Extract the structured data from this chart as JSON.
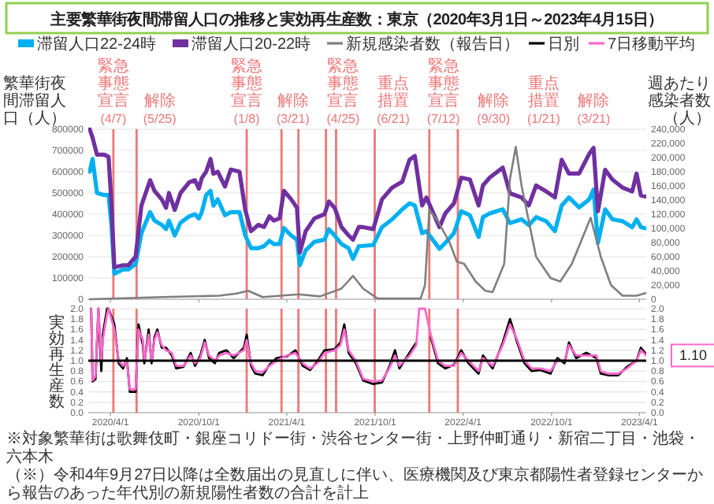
{
  "chart_data": [
    {
      "type": "line",
      "title": "主要繁華街夜間滞留人口の推移と実効再生産数：東京（2020年3月1日～2023年4月15日）",
      "ylabel": "繁華街夜間滞留人口（人）",
      "y2label": "週あたり感染者数（人）",
      "xlim": [
        "2020-02-15",
        "2023-04-15"
      ],
      "xticks": [
        "2020-04-01",
        "2020-10-01",
        "2021-04-01",
        "2021-10-01",
        "2022-04-01",
        "2022-10-01",
        "2023-04-01"
      ],
      "ylim": [
        0,
        800000
      ],
      "yticks": [
        0,
        100000,
        200000,
        300000,
        400000,
        500000,
        600000,
        700000,
        800000
      ],
      "y2lim": [
        0,
        240000
      ],
      "y2ticks": [
        0,
        {
          "value": 20000,
          "label": "20,000"
        },
        {
          "value": 40000,
          "label": "40,000"
        },
        {
          "value": 60000,
          "label": "60,000"
        },
        {
          "value": 80000,
          "label": "80,000"
        },
        {
          "value": 100000,
          "label": "100,000"
        },
        {
          "value": 120000,
          "label": "120,000"
        },
        {
          "value": 140000,
          "label": "140,000"
        },
        {
          "value": 160000,
          "label": "160,000"
        },
        {
          "value": 180000,
          "label": "180,000"
        },
        {
          "value": 200000,
          "label": "200,000"
        },
        {
          "value": 220000,
          "label": "220,000"
        },
        {
          "value": 240000,
          "label": "240,000"
        }
      ],
      "grid": "y",
      "legend": "top",
      "tick_labels": "y",
      "x": [
        "2020-02-18",
        "2020-02-24",
        "2020-03-04",
        "2020-03-19",
        "2020-03-28",
        "2020-04-03",
        "2020-04-09",
        "2020-04-27",
        "2020-05-08",
        "2020-05-23",
        "2020-06-04",
        "2020-06-22",
        "2020-07-01",
        "2020-07-16",
        "2020-07-25",
        "2020-07-31",
        "2020-08-12",
        "2020-08-24",
        "2020-09-11",
        "2020-09-23",
        "2020-10-01",
        "2020-10-07",
        "2020-10-16",
        "2020-10-25",
        "2020-10-31",
        "2020-11-09",
        "2020-11-24",
        "2020-12-06",
        "2020-12-24",
        "2021-01-05",
        "2021-01-17",
        "2021-02-01",
        "2021-02-13",
        "2021-02-24",
        "2021-03-05",
        "2021-03-17",
        "2021-03-26",
        "2021-04-10",
        "2021-04-22",
        "2021-04-28",
        "2021-05-10",
        "2021-05-28",
        "2021-06-18",
        "2021-06-27",
        "2021-07-09",
        "2021-07-23",
        "2021-08-07",
        "2021-08-16",
        "2021-08-28",
        "2021-09-06",
        "2021-09-27",
        "2021-10-15",
        "2021-11-05",
        "2021-11-26",
        "2021-12-11",
        "2021-12-22",
        "2022-01-06",
        "2022-01-15",
        "2022-02-11",
        "2022-02-23",
        "2022-03-13",
        "2022-03-28",
        "2022-04-15",
        "2022-05-03",
        "2022-05-12",
        "2022-05-26",
        "2022-06-22",
        "2022-07-07",
        "2022-07-31",
        "2022-08-15",
        "2022-08-30",
        "2022-09-20",
        "2022-10-08",
        "2022-10-22",
        "2022-11-06",
        "2022-11-27",
        "2022-12-18",
        "2022-12-27",
        "2023-01-05",
        "2023-01-20",
        "2023-02-04",
        "2023-02-25",
        "2023-03-17",
        "2023-03-26",
        "2023-04-04",
        "2023-04-15"
      ],
      "series": [
        {
          "name": "滞留人口22-24時",
          "color": "#00b0f0",
          "values": [
            600000,
            660000,
            500000,
            490000,
            490000,
            350000,
            120000,
            140000,
            140000,
            165000,
            310000,
            410000,
            370000,
            350000,
            330000,
            370000,
            300000,
            360000,
            390000,
            400000,
            380000,
            410000,
            490000,
            510000,
            440000,
            470000,
            395000,
            410000,
            410000,
            300000,
            240000,
            240000,
            250000,
            275000,
            260000,
            260000,
            335000,
            300000,
            280000,
            160000,
            230000,
            270000,
            280000,
            330000,
            300000,
            260000,
            240000,
            190000,
            250000,
            251000,
            255000,
            339000,
            376000,
            423000,
            451000,
            441000,
            311000,
            320000,
            237000,
            265000,
            311000,
            414000,
            395000,
            293000,
            386000,
            404000,
            423000,
            358000,
            376000,
            348000,
            386000,
            367000,
            320000,
            441000,
            479000,
            432000,
            470000,
            516000,
            265000,
            423000,
            376000,
            367000,
            339000,
            376000,
            339000,
            333000
          ]
        },
        {
          "name": "滞留人口20-22時",
          "color": "#7030a0",
          "values": [
            800000,
            760000,
            680000,
            680000,
            670000,
            450000,
            150000,
            160000,
            160000,
            200000,
            440000,
            560000,
            510000,
            470000,
            430000,
            500000,
            420000,
            500000,
            550000,
            560000,
            520000,
            570000,
            600000,
            660000,
            590000,
            600000,
            530000,
            610000,
            600000,
            420000,
            320000,
            350000,
            340000,
            390000,
            370000,
            380000,
            510000,
            470000,
            430000,
            220000,
            320000,
            380000,
            400000,
            460000,
            430000,
            340000,
            300000,
            280000,
            340000,
            339000,
            330000,
            470000,
            525000,
            553000,
            656000,
            674000,
            441000,
            479000,
            339000,
            404000,
            451000,
            572000,
            563000,
            441000,
            535000,
            572000,
            619000,
            498000,
            479000,
            441000,
            535000,
            507000,
            479000,
            656000,
            591000,
            591000,
            684000,
            712000,
            414000,
            609000,
            563000,
            525000,
            507000,
            591000,
            488000,
            483000
          ]
        },
        {
          "name": "新規感染者数（報告日）",
          "color": "#7f7f7f",
          "axis": "y2",
          "x": [
            "2020-02-18",
            "2020-07-16",
            "2020-11-12",
            "2020-12-18",
            "2021-01-11",
            "2021-02-10",
            "2021-04-25",
            "2021-06-09",
            "2021-07-23",
            "2021-08-16",
            "2021-09-06",
            "2021-10-06",
            "2022-01-03",
            "2022-01-12",
            "2022-01-21",
            "2022-02-08",
            "2022-03-04",
            "2022-03-19",
            "2022-04-03",
            "2022-04-27",
            "2022-05-17",
            "2022-06-01",
            "2022-06-25",
            "2022-07-07",
            "2022-07-19",
            "2022-07-31",
            "2022-08-30",
            "2022-09-29",
            "2022-10-19",
            "2022-11-12",
            "2022-12-06",
            "2022-12-21",
            "2023-01-11",
            "2023-02-01",
            "2023-02-25",
            "2023-03-26",
            "2023-04-15"
          ],
          "values": [
            0,
            3000,
            5000,
            8000,
            12000,
            3000,
            7000,
            4000,
            15000,
            33000,
            15000,
            1000,
            1000,
            20000,
            126000,
            110000,
            80000,
            53000,
            50000,
            25000,
            12000,
            10000,
            50000,
            170000,
            215000,
            160000,
            60000,
            30000,
            25000,
            50000,
            90000,
            115000,
            60000,
            20000,
            5000,
            5000,
            9000
          ]
        }
      ],
      "ref_lines": [
        {
          "axis": "x",
          "value": "2020-04-07",
          "label": "緊急事態宣言(4/7)",
          "color": "#ee7777"
        },
        {
          "axis": "x",
          "value": "2020-05-25",
          "label": "解除(5/25)",
          "color": "#ee7777"
        },
        {
          "axis": "x",
          "value": "2021-01-08",
          "label": "緊急事態宣言(1/8)",
          "color": "#ee7777"
        },
        {
          "axis": "x",
          "value": "2021-03-21",
          "label": "解除(3/21)",
          "color": "#ee7777"
        },
        {
          "axis": "x",
          "value": "2021-04-25",
          "label": "緊急事態宣言(4/25)",
          "color": "#ee7777"
        },
        {
          "axis": "x",
          "value": "2021-06-21",
          "label": "重点措置(6/21)",
          "color": "#ee7777"
        },
        {
          "axis": "x",
          "value": "2021-07-12",
          "label": "緊急事態宣言(7/12)",
          "color": "#ee7777"
        },
        {
          "axis": "x",
          "value": "2021-09-30",
          "label": "解除(9/30)",
          "color": "#ee7777"
        },
        {
          "axis": "x",
          "value": "2022-01-21",
          "label": "重点措置(1/21)",
          "color": "#ee7777"
        },
        {
          "axis": "x",
          "value": "2022-03-21",
          "label": "解除(3/21)",
          "color": "#ee7777"
        }
      ]
    },
    {
      "type": "line",
      "ylabel": "実効再生産数",
      "xlim": [
        "2020-02-15",
        "2023-04-15"
      ],
      "xticks": [
        {
          "value": "2020-04-01",
          "label": "2020/4/1"
        },
        {
          "value": "2020-10-01",
          "label": "2020/10/1"
        },
        {
          "value": "2021-04-01",
          "label": "2021/4/1"
        },
        {
          "value": "2021-10-01",
          "label": "2021/10/1"
        },
        {
          "value": "2022-04-01",
          "label": "2022/4/1"
        },
        {
          "value": "2022-10-01",
          "label": "2022/10/1"
        },
        {
          "value": "2023-04-01",
          "label": "2023/4/1"
        }
      ],
      "ylim": [
        0,
        2
      ],
      "yticks": [
        {
          "value": 0,
          "label": "0.0"
        },
        {
          "value": 0.2,
          "label": "0.2"
        },
        {
          "value": 0.4,
          "label": "0.4"
        },
        {
          "value": 0.6,
          "label": "0.6"
        },
        {
          "value": 0.8,
          "label": "0.8"
        },
        {
          "value": 1,
          "label": "1.0"
        },
        {
          "value": 1.2,
          "label": "1.2"
        },
        {
          "value": 1.4,
          "label": "1.4"
        },
        {
          "value": 1.6,
          "label": "1.6"
        },
        {
          "value": 1.8,
          "label": "1.8"
        },
        {
          "value": 2,
          "label": "2.0"
        }
      ],
      "y2lim": [
        0,
        2
      ],
      "y2ticks": [
        {
          "value": 0,
          "label": "0.0"
        },
        {
          "value": 0.2,
          "label": "0.2"
        },
        {
          "value": 0.4,
          "label": "0.4"
        },
        {
          "value": 0.6,
          "label": "0.6"
        },
        {
          "value": 0.8,
          "label": "0.8"
        },
        {
          "value": 1,
          "label": "1.0"
        },
        {
          "value": 1.2,
          "label": "1.2"
        },
        {
          "value": 1.4,
          "label": "1.4"
        },
        {
          "value": 1.6,
          "label": "1.6"
        },
        {
          "value": 1.8,
          "label": "1.8"
        },
        {
          "value": 2,
          "label": "2.0"
        }
      ],
      "grid": "y",
      "legend": "top",
      "x": [
        "2020-02-21",
        "2020-02-24",
        "2020-03-01",
        "2020-03-07",
        "2020-03-13",
        "2020-03-16",
        "2020-03-25",
        "2020-03-28",
        "2020-04-09",
        "2020-04-18",
        "2020-04-27",
        "2020-05-05",
        "2020-05-11",
        "2020-05-23",
        "2020-05-29",
        "2020-06-07",
        "2020-06-10",
        "2020-06-19",
        "2020-06-25",
        "2020-07-01",
        "2020-07-07",
        "2020-07-16",
        "2020-07-25",
        "2020-08-06",
        "2020-08-15",
        "2020-08-30",
        "2020-09-14",
        "2020-09-23",
        "2020-10-04",
        "2020-10-13",
        "2020-10-22",
        "2020-11-03",
        "2020-11-12",
        "2020-11-27",
        "2020-12-12",
        "2021-01-02",
        "2021-01-08",
        "2021-01-17",
        "2021-01-26",
        "2021-02-10",
        "2021-02-24",
        "2021-03-11",
        "2021-04-01",
        "2021-04-19",
        "2021-05-04",
        "2021-05-19",
        "2021-06-03",
        "2021-06-18",
        "2021-07-09",
        "2021-07-21",
        "2021-07-29",
        "2021-08-07",
        "2021-08-22",
        "2021-09-06",
        "2021-09-27",
        "2021-10-15",
        "2021-10-30",
        "2021-11-11",
        "2021-11-20",
        "2021-12-11",
        "2021-12-25",
        "2021-12-31",
        "2022-01-12",
        "2022-01-24",
        "2022-02-08",
        "2022-02-23",
        "2022-03-13",
        "2022-03-28",
        "2022-04-12",
        "2022-05-03",
        "2022-05-12",
        "2022-06-01",
        "2022-06-22",
        "2022-07-07",
        "2022-07-22",
        "2022-08-06",
        "2022-08-21",
        "2022-09-08",
        "2022-09-29",
        "2022-10-13",
        "2022-10-28",
        "2022-11-06",
        "2022-11-21",
        "2022-12-12",
        "2023-01-02",
        "2023-01-11",
        "2023-01-26",
        "2023-02-16",
        "2023-03-06",
        "2023-03-26",
        "2023-04-04",
        "2023-04-15"
      ],
      "series": [
        {
          "name": "日別",
          "color": "#000000",
          "values": [
            2.0,
            0.6,
            0.65,
            2.0,
            0.8,
            1.5,
            2.0,
            2.0,
            1.7,
            0.95,
            0.85,
            1.05,
            0.4,
            0.4,
            1.7,
            1.3,
            0.95,
            1.6,
            0.95,
            1.45,
            1.6,
            1.25,
            1.25,
            1.1,
            0.85,
            0.88,
            1.15,
            0.9,
            1.1,
            1.4,
            1.05,
            0.95,
            1.15,
            1.2,
            1.05,
            1.25,
            1.5,
            0.9,
            0.75,
            0.72,
            0.92,
            1.05,
            1.08,
            1.2,
            0.9,
            0.82,
            0.98,
            1.2,
            1.22,
            1.35,
            1.7,
            1.15,
            0.95,
            0.62,
            0.55,
            0.58,
            0.88,
            1.2,
            0.85,
            1.15,
            1.35,
            null,
            null,
            1.45,
            0.95,
            0.85,
            0.92,
            1.2,
            0.95,
            0.75,
            1.1,
            0.85,
            1.35,
            1.8,
            1.35,
            0.95,
            0.8,
            0.82,
            0.75,
            1.05,
            0.95,
            1.35,
            1.05,
            1.15,
            1.05,
            0.75,
            0.72,
            0.72,
            0.88,
            1.0,
            1.25,
            1.12
          ]
        },
        {
          "name": "7日移動平均",
          "color": "#ff66cc",
          "values": [
            2.0,
            0.62,
            0.7,
            2.0,
            1.0,
            1.4,
            1.9,
            2.0,
            1.6,
            1.0,
            0.9,
            1.0,
            0.45,
            0.45,
            1.6,
            1.4,
            1.0,
            1.5,
            1.0,
            1.4,
            1.55,
            1.3,
            1.2,
            1.15,
            0.9,
            0.9,
            1.1,
            0.95,
            1.05,
            1.35,
            1.1,
            1.0,
            1.1,
            1.15,
            1.1,
            1.2,
            1.4,
            0.95,
            0.8,
            0.78,
            0.9,
            1.0,
            1.1,
            1.15,
            0.95,
            0.85,
            0.95,
            1.15,
            1.2,
            1.3,
            1.6,
            1.2,
            1.0,
            0.65,
            0.6,
            0.62,
            0.85,
            1.1,
            0.9,
            1.1,
            1.3,
            2.0,
            2.0,
            1.5,
            1.0,
            0.9,
            0.9,
            1.15,
            1.0,
            0.8,
            1.05,
            0.9,
            1.3,
            1.7,
            1.4,
            1.0,
            0.85,
            0.85,
            0.8,
            1.0,
            1.0,
            1.3,
            1.1,
            1.1,
            1.1,
            0.8,
            0.75,
            0.75,
            0.85,
            1.0,
            1.2,
            1.1
          ]
        }
      ],
      "ref_lines": [
        {
          "axis": "y",
          "value": 1,
          "color": "#000000"
        },
        {
          "axis": "x",
          "value": "2020-04-07",
          "color": "#ee7777"
        },
        {
          "axis": "x",
          "value": "2020-05-25",
          "color": "#ee7777"
        },
        {
          "axis": "x",
          "value": "2021-01-08",
          "color": "#ee7777"
        },
        {
          "axis": "x",
          "value": "2021-03-21",
          "color": "#ee7777"
        },
        {
          "axis": "x",
          "value": "2021-04-25",
          "color": "#ee7777"
        },
        {
          "axis": "x",
          "value": "2021-06-21",
          "color": "#ee7777"
        },
        {
          "axis": "x",
          "value": "2021-07-12",
          "color": "#ee7777"
        },
        {
          "axis": "x",
          "value": "2021-09-30",
          "color": "#ee7777"
        },
        {
          "axis": "x",
          "value": "2022-01-21",
          "color": "#ee7777"
        },
        {
          "axis": "x",
          "value": "2022-03-21",
          "color": "#ee7777"
        }
      ],
      "annotations": [
        {
          "text": "1.10",
          "x": "2023-04-15",
          "y": 1.1
        },
        "※対象繁華街は歌舞伎町・銀座コリドー街・渋谷センター街・上野仲町通り・新宿二丁目・池袋・六本木",
        "（※）令和4年9月27日以降は全数届出の見直しに伴い、医療機関及び東京都陽性者登録センターから報告のあった年代別の新規陽性者数の合計を計上"
      ]
    }
  ]
}
